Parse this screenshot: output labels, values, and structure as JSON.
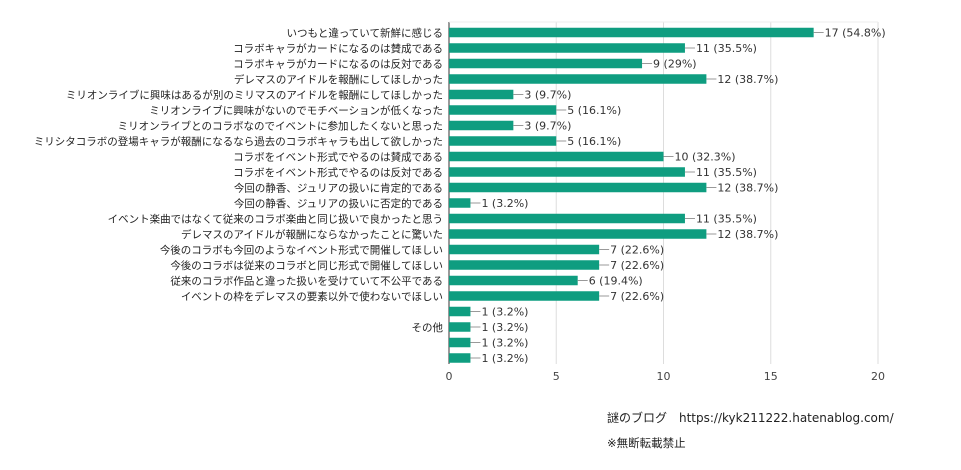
{
  "chart_data": {
    "type": "bar",
    "orientation": "horizontal",
    "title": "",
    "xlabel": "",
    "ylabel": "",
    "xlim": [
      0,
      20
    ],
    "x_ticks": [
      0,
      5,
      10,
      15,
      20
    ],
    "grid": true,
    "bar_color": "#0f9d80",
    "total": 31,
    "categories": [
      "いつもと違っていて新鮮に感じる",
      "コラボキャラがカードになるのは賛成である",
      "コラボキャラがカードになるのは反対である",
      "デレマスのアイドルを報酬にしてほしかった",
      "ミリオンライブに興味はあるが別のミリマスのアイドルを報酬にしてほしかった",
      "ミリオンライブに興味がないのでモチベーションが低くなった",
      "ミリオンライブとのコラボなのでイベントに参加したくないと思った",
      "ミリシタコラボの登場キャラが報酬になるなら過去のコラボキャラも出して欲しかった",
      "コラボをイベント形式でやるのは賛成である",
      "コラボをイベント形式でやるのは反対である",
      "今回の静香、ジュリアの扱いに肯定的である",
      "今回の静香、ジュリアの扱いに否定的である",
      "イベント楽曲ではなくて従来のコラボ楽曲と同じ扱いで良かったと思う",
      "デレマスのアイドルが報酬にならなかったことに驚いた",
      "今後のコラボも今回のようなイベント形式で開催してほしい",
      "今後のコラボは従来のコラボと同じ形式で開催してほしい",
      "従来のコラボ作品と違った扱いを受けていて不公平である",
      "イベントの枠をデレマスの要素以外で使わないでほしい",
      "",
      "その他",
      "",
      ""
    ],
    "values": [
      17,
      11,
      9,
      12,
      3,
      5,
      3,
      5,
      10,
      11,
      12,
      1,
      11,
      12,
      7,
      7,
      6,
      7,
      1,
      1,
      1,
      1
    ],
    "data_labels": [
      "17 (54.8%)",
      "11 (35.5%)",
      "9 (29%)",
      "12 (38.7%)",
      "3 (9.7%)",
      "5 (16.1%)",
      "3 (9.7%)",
      "5 (16.1%)",
      "10 (32.3%)",
      "11 (35.5%)",
      "12 (38.7%)",
      "1 (3.2%)",
      "11 (35.5%)",
      "12 (38.7%)",
      "7 (22.6%)",
      "7 (22.6%)",
      "6 (19.4%)",
      "7 (22.6%)",
      "1 (3.2%)",
      "1 (3.2%)",
      "1 (3.2%)",
      "1 (3.2%)"
    ]
  },
  "footer": {
    "blog_credit": "謎のブログ　https://kyk211222.hatenablog.com/",
    "notice": "※無断転載禁止"
  }
}
